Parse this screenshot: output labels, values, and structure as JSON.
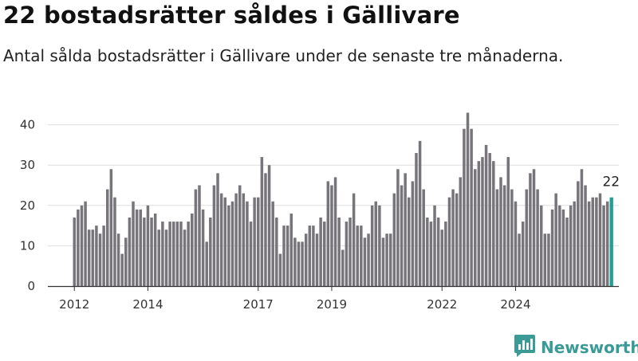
{
  "header": {
    "title": "22 bostadsrätter såldes i Gällivare",
    "subtitle": "Antal sålda bostadsrätter i Gällivare under de senaste tre månaderna."
  },
  "brand": {
    "name": "Newsworthy",
    "logo_icon": "newsworthy-chart-bubble-icon",
    "color": "#3a9a96"
  },
  "colors": {
    "bar": "#77757a",
    "highlight": "#1f9e94",
    "grid": "#dddddd",
    "axis": "#333333"
  },
  "chart_data": {
    "type": "bar",
    "title": "22 bostadsrätter såldes i Gällivare",
    "xlabel": "",
    "ylabel": "",
    "ylim": [
      0,
      45
    ],
    "yticks": [
      0,
      10,
      20,
      30,
      40
    ],
    "grid": true,
    "start": "2012-03",
    "x_tick_labels": [
      {
        "label": "2012",
        "index": 0
      },
      {
        "label": "2014",
        "index": 20
      },
      {
        "label": "2017",
        "index": 50
      },
      {
        "label": "2019",
        "index": 70
      },
      {
        "label": "2022",
        "index": 100
      },
      {
        "label": "2024",
        "index": 120
      }
    ],
    "values": [
      17,
      19,
      20,
      21,
      14,
      14,
      15,
      13,
      15,
      24,
      29,
      22,
      13,
      8,
      12,
      17,
      21,
      19,
      19,
      17,
      20,
      17,
      18,
      14,
      16,
      14,
      16,
      16,
      16,
      16,
      14,
      16,
      18,
      24,
      25,
      19,
      11,
      17,
      25,
      28,
      23,
      22,
      20,
      21,
      23,
      25,
      23,
      21,
      16,
      22,
      22,
      32,
      28,
      30,
      21,
      17,
      8,
      15,
      15,
      18,
      12,
      11,
      11,
      13,
      15,
      15,
      13,
      17,
      16,
      26,
      25,
      27,
      17,
      9,
      16,
      17,
      23,
      15,
      15,
      12,
      13,
      20,
      21,
      20,
      12,
      13,
      13,
      23,
      29,
      25,
      28,
      22,
      26,
      33,
      36,
      24,
      17,
      16,
      20,
      17,
      14,
      16,
      22,
      24,
      23,
      27,
      39,
      43,
      39,
      29,
      31,
      32,
      35,
      33,
      31,
      24,
      27,
      25,
      32,
      24,
      21,
      13,
      16,
      24,
      28,
      29,
      24,
      20,
      13,
      13,
      19,
      23,
      20,
      19,
      17,
      20,
      21,
      26,
      29,
      25,
      21,
      22,
      22,
      23,
      20,
      21,
      22
    ],
    "highlight_last": true,
    "annotation": {
      "text": "22",
      "target": "last"
    }
  }
}
